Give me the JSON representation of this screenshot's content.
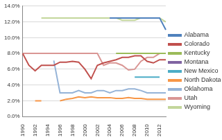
{
  "chart_data": {
    "type": "line",
    "categories": [
      "1990",
      null,
      "1992",
      null,
      "1994",
      null,
      "1996",
      null,
      "1998",
      null,
      "2000",
      null,
      "2002",
      null,
      "2004",
      null,
      "2006",
      null,
      "2008",
      null,
      "2010",
      null,
      "2012",
      null
    ],
    "series": [
      {
        "name": "Alabama",
        "color": "#4f81bd",
        "values": [
          null,
          null,
          null,
          null,
          null,
          null,
          null,
          null,
          null,
          null,
          null,
          null,
          null,
          null,
          12.5,
          12.5,
          12.5,
          12.5,
          12.5,
          12.5,
          12.5,
          12.5,
          12.5,
          11.0
        ]
      },
      {
        "name": "Colorado",
        "color": "#c0504d",
        "values": [
          8.0,
          6.5,
          5.8,
          6.5,
          6.5,
          6.5,
          6.9,
          6.9,
          7.0,
          6.9,
          6.0,
          4.8,
          6.5,
          6.8,
          7.0,
          7.2,
          7.5,
          7.5,
          7.7,
          7.7,
          7.0,
          6.8,
          7.2,
          7.2
        ]
      },
      {
        "name": "Kentucky",
        "color": "#9bbb59",
        "values": [
          null,
          null,
          null,
          null,
          null,
          null,
          null,
          null,
          null,
          null,
          null,
          null,
          null,
          null,
          null,
          8.0,
          8.0,
          8.0,
          8.0,
          8.0,
          8.0,
          8.0,
          8.0,
          8.0
        ]
      },
      {
        "name": "Montana",
        "color": "#8064a2",
        "values": [
          null,
          null,
          null,
          null,
          null,
          null,
          null,
          null,
          null,
          null,
          null,
          null,
          null,
          null,
          12.5,
          12.5,
          12.5,
          12.5,
          12.5,
          12.5,
          12.5,
          12.5,
          12.5,
          null
        ]
      },
      {
        "name": "New Mexico",
        "color": "#4bacc6",
        "values": [
          null,
          null,
          null,
          null,
          null,
          null,
          null,
          null,
          null,
          null,
          null,
          null,
          null,
          null,
          null,
          null,
          null,
          null,
          5.0,
          5.0,
          5.0,
          5.0,
          5.0,
          null
        ]
      },
      {
        "name": "North Dakota",
        "color": "#f79646",
        "values": [
          null,
          null,
          2.0,
          2.0,
          null,
          null,
          2.0,
          2.2,
          2.3,
          2.5,
          2.4,
          2.5,
          2.4,
          2.4,
          2.4,
          2.3,
          2.3,
          2.4,
          2.3,
          2.3,
          2.2,
          2.2,
          2.2,
          2.2
        ]
      },
      {
        "name": "Oklahoma",
        "color": "#95b3d7",
        "values": [
          null,
          null,
          null,
          null,
          null,
          7.1,
          3.0,
          3.0,
          3.0,
          3.3,
          3.0,
          3.0,
          3.3,
          3.3,
          3.0,
          3.3,
          3.3,
          3.5,
          3.5,
          3.3,
          3.0,
          3.0,
          3.0,
          3.0
        ]
      },
      {
        "name": "Utah",
        "color": "#d99694",
        "values": [
          8.0,
          8.0,
          8.0,
          8.0,
          8.0,
          8.0,
          8.0,
          8.0,
          8.0,
          8.0,
          8.0,
          8.0,
          8.0,
          6.5,
          6.8,
          6.8,
          6.5,
          5.9,
          6.0,
          7.0,
          7.5,
          7.5,
          8.0,
          8.0
        ]
      },
      {
        "name": "Wyoming",
        "color": "#c3d69b",
        "values": [
          null,
          null,
          null,
          12.5,
          12.5,
          12.5,
          12.5,
          12.5,
          12.5,
          12.5,
          12.5,
          12.5,
          12.5,
          12.5,
          12.5,
          12.5,
          12.2,
          12.2,
          12.2,
          12.5,
          12.5,
          12.5,
          12.5,
          12.0
        ]
      }
    ],
    "ylim": [
      0,
      14
    ],
    "yticks": [
      {
        "value": 0,
        "label": "0.0%"
      },
      {
        "value": 2,
        "label": "2.0%"
      },
      {
        "value": 4,
        "label": "4.0%"
      },
      {
        "value": 6,
        "label": "6.0%"
      },
      {
        "value": 8,
        "label": "8.0%"
      },
      {
        "value": 10,
        "label": "10.0%"
      },
      {
        "value": 12,
        "label": "12.0%"
      },
      {
        "value": 14,
        "label": "14.0%"
      }
    ],
    "grid": true,
    "legend": "right"
  }
}
